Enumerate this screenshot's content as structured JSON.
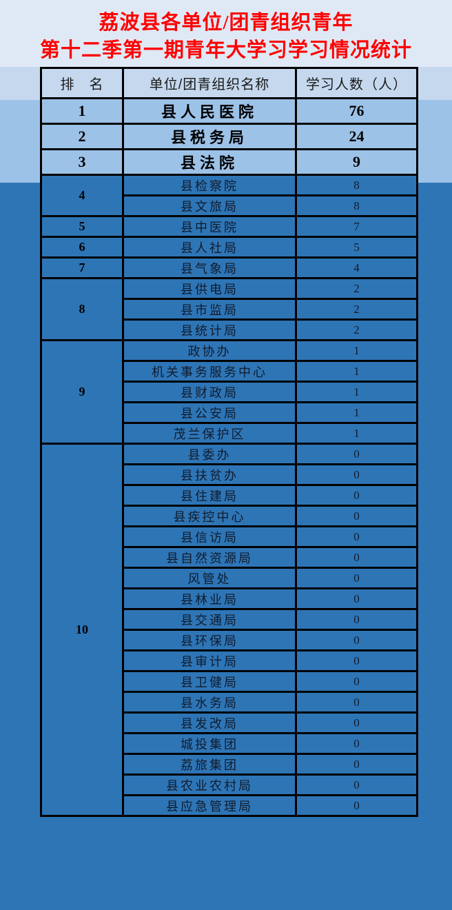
{
  "title": {
    "line1": "荔波县各单位/团青组织青年",
    "line2": "第十二季第一期青年大学习学习情况统计"
  },
  "table": {
    "headers": {
      "rank": "排　名",
      "name": "单位/团青组织名称",
      "count": "学习人数（人）"
    },
    "groups": [
      {
        "rank": "1",
        "highlight": true,
        "rows": [
          {
            "name": "县人民医院",
            "count": "76"
          }
        ]
      },
      {
        "rank": "2",
        "highlight": true,
        "rows": [
          {
            "name": "县税务局",
            "count": "24"
          }
        ]
      },
      {
        "rank": "3",
        "highlight": true,
        "rows": [
          {
            "name": "县法院",
            "count": "9"
          }
        ]
      },
      {
        "rank": "4",
        "highlight": false,
        "rows": [
          {
            "name": "县检察院",
            "count": "8"
          },
          {
            "name": "县文旅局",
            "count": "8"
          }
        ]
      },
      {
        "rank": "5",
        "highlight": false,
        "rows": [
          {
            "name": "县中医院",
            "count": "7"
          }
        ]
      },
      {
        "rank": "6",
        "highlight": false,
        "rows": [
          {
            "name": "县人社局",
            "count": "5"
          }
        ]
      },
      {
        "rank": "7",
        "highlight": false,
        "rows": [
          {
            "name": "县气象局",
            "count": "4"
          }
        ]
      },
      {
        "rank": "8",
        "highlight": false,
        "rows": [
          {
            "name": "县供电局",
            "count": "2"
          },
          {
            "name": "县市监局",
            "count": "2"
          },
          {
            "name": "县统计局",
            "count": "2"
          }
        ]
      },
      {
        "rank": "9",
        "highlight": false,
        "rows": [
          {
            "name": "政协办",
            "count": "1"
          },
          {
            "name": "机关事务服务中心",
            "count": "1"
          },
          {
            "name": "县财政局",
            "count": "1"
          },
          {
            "name": "县公安局",
            "count": "1"
          },
          {
            "name": "茂兰保护区",
            "count": "1"
          }
        ]
      },
      {
        "rank": "10",
        "highlight": false,
        "rows": [
          {
            "name": "县委办",
            "count": "0"
          },
          {
            "name": "县扶贫办",
            "count": "0"
          },
          {
            "name": "县住建局",
            "count": "0"
          },
          {
            "name": "县疾控中心",
            "count": "0"
          },
          {
            "name": "县信访局",
            "count": "0"
          },
          {
            "name": "县自然资源局",
            "count": "0"
          },
          {
            "name": "风管处",
            "count": "0"
          },
          {
            "name": "县林业局",
            "count": "0"
          },
          {
            "name": "县交通局",
            "count": "0"
          },
          {
            "name": "县环保局",
            "count": "0"
          },
          {
            "name": "县审计局",
            "count": "0"
          },
          {
            "name": "县卫健局",
            "count": "0"
          },
          {
            "name": "县水务局",
            "count": "0"
          },
          {
            "name": "县发改局",
            "count": "0"
          },
          {
            "name": "城投集团",
            "count": "0"
          },
          {
            "name": "荔旅集团",
            "count": "0"
          },
          {
            "name": "县农业农村局",
            "count": "0"
          },
          {
            "name": "县应急管理局",
            "count": "0"
          }
        ]
      }
    ]
  },
  "colors": {
    "title_red": "#fe0000",
    "band_top": "#dfe9f5",
    "band_header": "#c5d8ee",
    "band_highlight": "#9dc2e7",
    "band_dark": "#2e75b6",
    "grid_border": "#000000",
    "dark_row_text": "#101c2e"
  }
}
